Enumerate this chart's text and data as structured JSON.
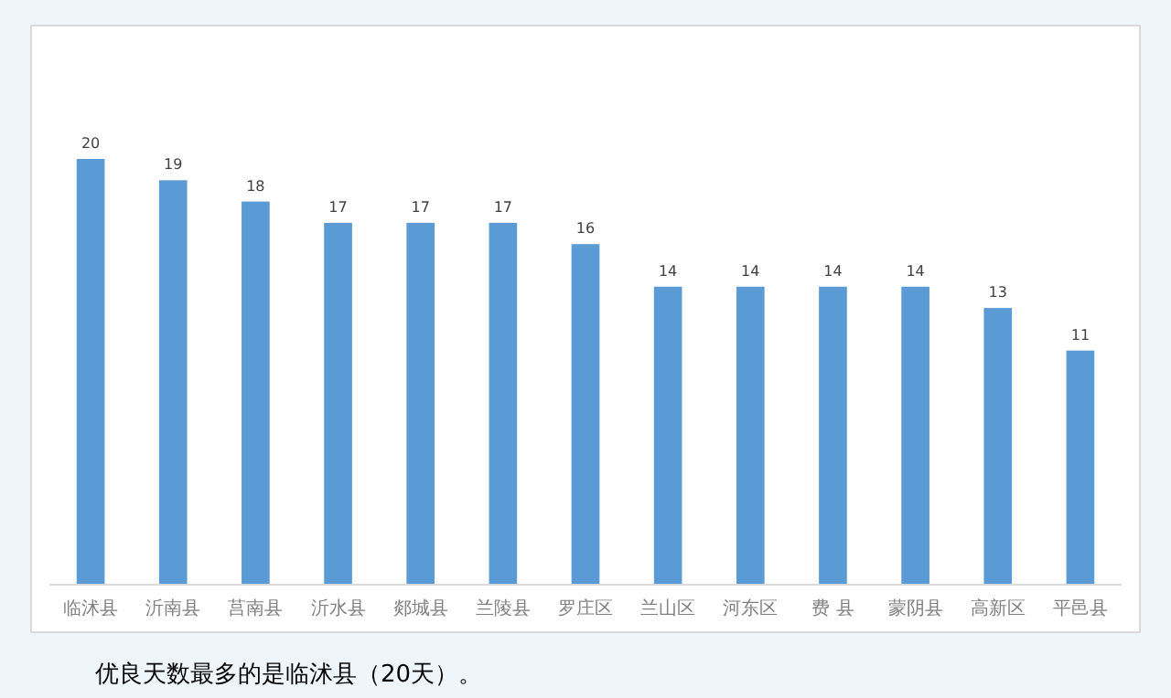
{
  "chart_data": {
    "type": "bar",
    "categories": [
      "临沭县",
      "沂南县",
      "莒南县",
      "沂水县",
      "郯城县",
      "兰陵县",
      "罗庄区",
      "兰山区",
      "河东区",
      "费 县",
      "蒙阴县",
      "高新区",
      "平邑县"
    ],
    "values": [
      20,
      19,
      18,
      17,
      17,
      17,
      16,
      14,
      14,
      14,
      14,
      13,
      11
    ],
    "color": "#5b9bd5",
    "data_labels": true,
    "annotations": [
      "优良天数最多的是临沭县（20天）。"
    ]
  }
}
